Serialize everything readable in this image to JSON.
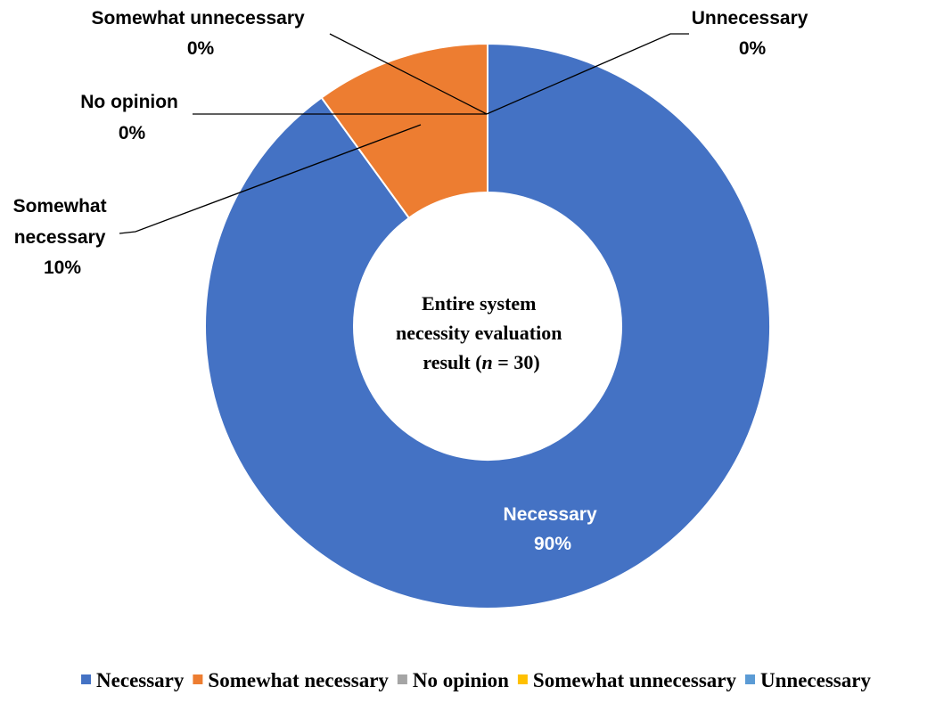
{
  "chart_data": {
    "type": "pie",
    "style": "donut",
    "center_label": {
      "line1": "Entire system",
      "line2": "necessity evaluation",
      "line3_prefix": "result (",
      "line3_variable": "n",
      "line3_suffix": " = 30)"
    },
    "slices": [
      {
        "name": "Necessary",
        "value": 90,
        "label_value": "90%",
        "color": "#4472C4"
      },
      {
        "name": "Somewhat necessary",
        "value": 10,
        "label_value": "10%",
        "color": "#ED7D31"
      },
      {
        "name": "No opinion",
        "value": 0,
        "label_value": "0%",
        "color": "#A5A5A5"
      },
      {
        "name": "Somewhat unnecessary",
        "value": 0,
        "label_value": "0%",
        "color": "#FFC000"
      },
      {
        "name": "Unnecessary",
        "value": 0,
        "label_value": "0%",
        "color": "#5B9BD5"
      }
    ],
    "data_labels": {
      "necessary": {
        "line1": "Necessary",
        "line2": "90%"
      },
      "somewhat_necessary": {
        "line1": "Somewhat",
        "line2": "necessary",
        "line3": "10%"
      },
      "no_opinion": {
        "line1": "No opinion",
        "line2": "0%"
      },
      "somewhat_unnecessary": {
        "line1": "Somewhat unnecessary",
        "line2": "0%"
      },
      "unnecessary": {
        "line1": "Unnecessary",
        "line2": "0%"
      }
    },
    "legend": {
      "placement": "bottom",
      "entries": [
        {
          "label": "Necessary",
          "color": "#4472C4"
        },
        {
          "label": "Somewhat necessary",
          "color": "#ED7D31"
        },
        {
          "label": "No opinion",
          "color": "#A5A5A5"
        },
        {
          "label": "Somewhat unnecessary",
          "color": "#FFC000"
        },
        {
          "label": "Unnecessary",
          "color": "#5B9BD5"
        }
      ]
    }
  }
}
